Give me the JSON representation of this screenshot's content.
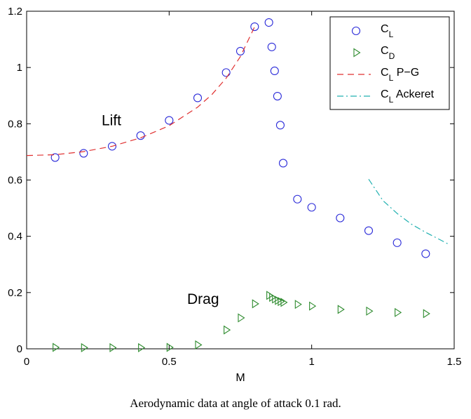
{
  "caption": "Aerodynamic data at angle of attack 0.1 rad.",
  "colors": {
    "cl": "#2b2bd9",
    "cd": "#2e8b2e",
    "pg": "#e03030",
    "ackeret": "#20b0b0"
  },
  "chart_data": {
    "type": "scatter",
    "xlabel": "M",
    "ylabel": "",
    "xlim": [
      0,
      1.5
    ],
    "ylim": [
      0,
      1.2
    ],
    "xticks": [
      "0",
      "0.5",
      "1",
      "1.5"
    ],
    "yticks": [
      "0",
      "0.2",
      "0.4",
      "0.6",
      "0.8",
      "1",
      "1.2"
    ],
    "grid": false,
    "legend_position": "top-right",
    "annotations": [
      {
        "text": "Lift",
        "x": 0.3,
        "y": 0.815
      },
      {
        "text": "Drag",
        "x": 0.6,
        "y": 0.18
      }
    ],
    "series": [
      {
        "name": "C_L",
        "legend_main": "C",
        "legend_sub": "L",
        "legend_suffix": "",
        "marker": "circle",
        "x": [
          0.1,
          0.2,
          0.3,
          0.4,
          0.5,
          0.6,
          0.7,
          0.75,
          0.8,
          0.85,
          0.86,
          0.87,
          0.88,
          0.89,
          0.9,
          0.95,
          1.0,
          1.1,
          1.2,
          1.3,
          1.4
        ],
        "y": [
          0.68,
          0.695,
          0.72,
          0.758,
          0.812,
          0.892,
          0.982,
          1.058,
          1.145,
          1.16,
          1.073,
          0.988,
          0.898,
          0.795,
          0.66,
          0.532,
          0.503,
          0.465,
          0.42,
          0.377,
          0.338
        ]
      },
      {
        "name": "C_D",
        "legend_main": "C",
        "legend_sub": "D",
        "legend_suffix": "",
        "marker": "triangle-right",
        "x": [
          0.1,
          0.2,
          0.3,
          0.4,
          0.5,
          0.6,
          0.7,
          0.75,
          0.8,
          0.85,
          0.86,
          0.87,
          0.88,
          0.89,
          0.9,
          0.95,
          1.0,
          1.1,
          1.2,
          1.3,
          1.4
        ],
        "y": [
          0.005,
          0.004,
          0.004,
          0.004,
          0.005,
          0.014,
          0.067,
          0.11,
          0.16,
          0.19,
          0.183,
          0.177,
          0.172,
          0.168,
          0.165,
          0.158,
          0.152,
          0.14,
          0.134,
          0.129,
          0.125
        ]
      },
      {
        "name": "C_L P-G",
        "legend_main": "C",
        "legend_sub": "L",
        "legend_suffix": " P−G",
        "line": "dashed",
        "x": [
          0,
          0.1,
          0.2,
          0.3,
          0.4,
          0.5,
          0.6,
          0.65,
          0.7,
          0.75,
          0.8
        ],
        "y": [
          0.687,
          0.69,
          0.701,
          0.72,
          0.75,
          0.793,
          0.859,
          0.904,
          0.962,
          1.039,
          1.145
        ]
      },
      {
        "name": "C_L Ackeret",
        "legend_main": "C",
        "legend_sub": "L",
        "legend_suffix": " Ackeret",
        "line": "dashdot",
        "x": [
          1.2,
          1.25,
          1.3,
          1.35,
          1.4,
          1.45,
          1.48
        ],
        "y": [
          0.603,
          0.527,
          0.481,
          0.443,
          0.414,
          0.388,
          0.372
        ]
      }
    ]
  }
}
